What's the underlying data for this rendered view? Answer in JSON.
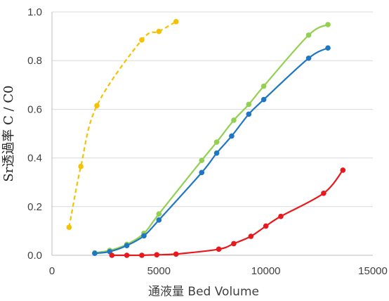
{
  "chart_data": {
    "type": "line",
    "xlabel": "通液量 Bed Volume",
    "ylabel": "Sr透過率 C / C0",
    "xlim": [
      0,
      15000
    ],
    "ylim": [
      0,
      1.0
    ],
    "x_ticks": [
      0,
      5000,
      10000,
      15000
    ],
    "y_ticks": [
      0.0,
      0.2,
      0.4,
      0.6,
      0.8,
      1.0
    ],
    "x_tick_labels": [
      "0",
      "5000",
      "10000",
      "15000"
    ],
    "y_tick_labels": [
      "0.0",
      "0.2",
      "0.4",
      "0.6",
      "0.8",
      "1.0"
    ],
    "grid": "horizontal",
    "legend": "none",
    "series": [
      {
        "color": "#f5c200",
        "dashed": true,
        "x": [
          800,
          1350,
          2100,
          4200,
          5000,
          5800
        ],
        "y": [
          0.115,
          0.365,
          0.615,
          0.885,
          0.92,
          0.96
        ]
      },
      {
        "color": "#92d050",
        "dashed": false,
        "x": [
          2000,
          2700,
          3500,
          4300,
          5000,
          7000,
          7700,
          8500,
          9200,
          9900,
          12000,
          12900
        ],
        "y": [
          0.01,
          0.02,
          0.045,
          0.09,
          0.17,
          0.39,
          0.465,
          0.555,
          0.62,
          0.695,
          0.905,
          0.948
        ]
      },
      {
        "color": "#1f77c4",
        "dashed": false,
        "x": [
          2000,
          2700,
          3500,
          4300,
          5000,
          7000,
          7700,
          8400,
          9200,
          9900,
          12000,
          12900
        ],
        "y": [
          0.008,
          0.015,
          0.04,
          0.08,
          0.145,
          0.34,
          0.42,
          0.49,
          0.58,
          0.64,
          0.81,
          0.852
        ]
      },
      {
        "color": "#e8191c",
        "dashed": false,
        "x": [
          2800,
          3500,
          4200,
          4900,
          5800,
          7800,
          8500,
          9300,
          10000,
          10700,
          12700,
          13600
        ],
        "y": [
          0.0,
          0.0,
          0.0,
          0.002,
          0.005,
          0.025,
          0.048,
          0.078,
          0.12,
          0.16,
          0.255,
          0.35
        ]
      }
    ]
  }
}
